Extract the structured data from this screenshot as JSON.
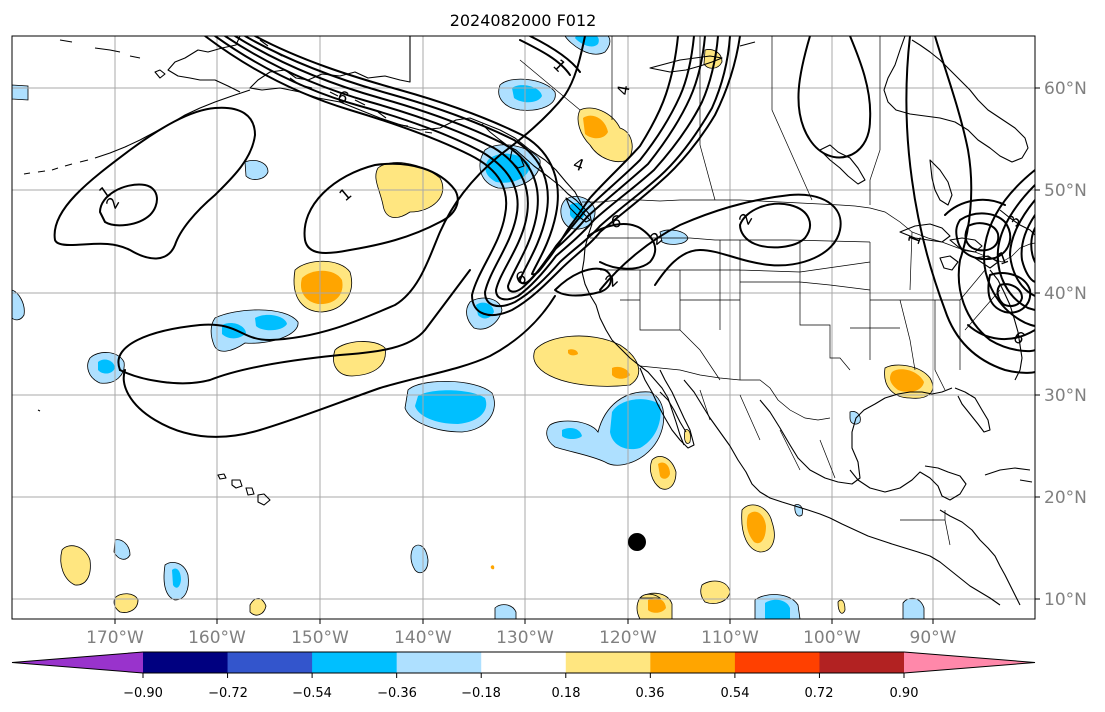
{
  "title": "2024082000 F012",
  "map": {
    "lat_labels": [
      "60°N",
      "50°N",
      "40°N",
      "30°N",
      "20°N",
      "10°N"
    ],
    "lon_labels": [
      "170°W",
      "160°W",
      "150°W",
      "140°W",
      "130°W",
      "120°W",
      "110°W",
      "100°W",
      "90°W"
    ],
    "colors": {
      "grid": "#a8a8a8",
      "tick_label": "#808080",
      "coast": "#000000",
      "contour": "#000000"
    },
    "contour_labels": [
      "1",
      "2",
      "1",
      "6",
      "1",
      "4",
      "6",
      "4",
      "2",
      "2",
      "6",
      "2",
      "1",
      "3",
      "1",
      "6"
    ],
    "marker": "storm-center-dot"
  },
  "colorbar": {
    "tick_labels": [
      "−0.90",
      "−0.72",
      "−0.54",
      "−0.36",
      "−0.18",
      "0.18",
      "0.36",
      "0.54",
      "0.72",
      "0.90"
    ],
    "levels": [
      -0.9,
      -0.72,
      -0.54,
      -0.36,
      -0.18,
      0.18,
      0.36,
      0.54,
      0.72,
      0.9
    ],
    "colors": [
      "#9933cc",
      "#000080",
      "#3355cc",
      "#00bfff",
      "#aee0ff",
      "#ffffff",
      "#ffe680",
      "#ffa500",
      "#ff4000",
      "#b22222",
      "#ff88aa"
    ],
    "extend": "both"
  }
}
